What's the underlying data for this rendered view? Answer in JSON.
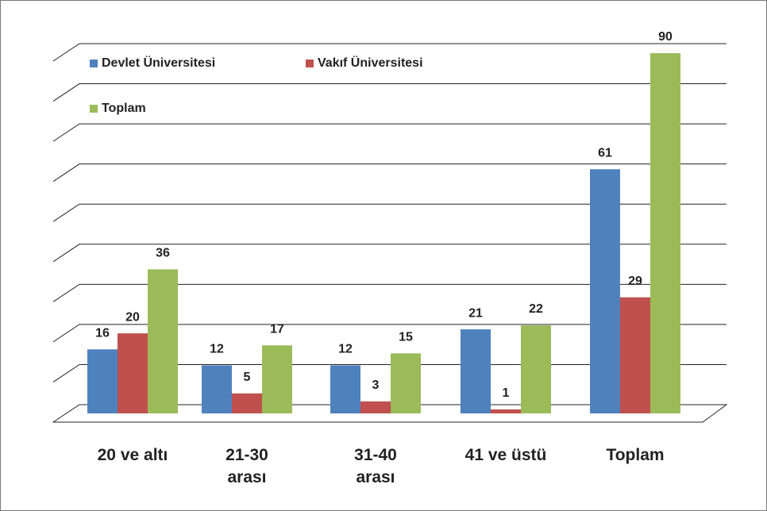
{
  "chart_data": {
    "type": "bar",
    "categories": [
      "20 ve altı",
      "21-30 arası",
      "31-40 arası",
      "41 ve üstü",
      "Toplam"
    ],
    "series": [
      {
        "name": "Devlet Üniversitesi",
        "color": "#4f81bd",
        "values": [
          16,
          12,
          12,
          21,
          61
        ]
      },
      {
        "name": "Vakıf Üniversitesi",
        "color": "#c0504d",
        "values": [
          20,
          5,
          3,
          1,
          29
        ]
      },
      {
        "name": "Toplam",
        "color": "#9bbb59",
        "values": [
          36,
          17,
          15,
          22,
          90
        ]
      }
    ],
    "ylim": [
      0,
      90
    ],
    "yticks": [
      0,
      10,
      20,
      30,
      40,
      50,
      60,
      70,
      80,
      90
    ],
    "grid": true,
    "legend": "top-left"
  }
}
